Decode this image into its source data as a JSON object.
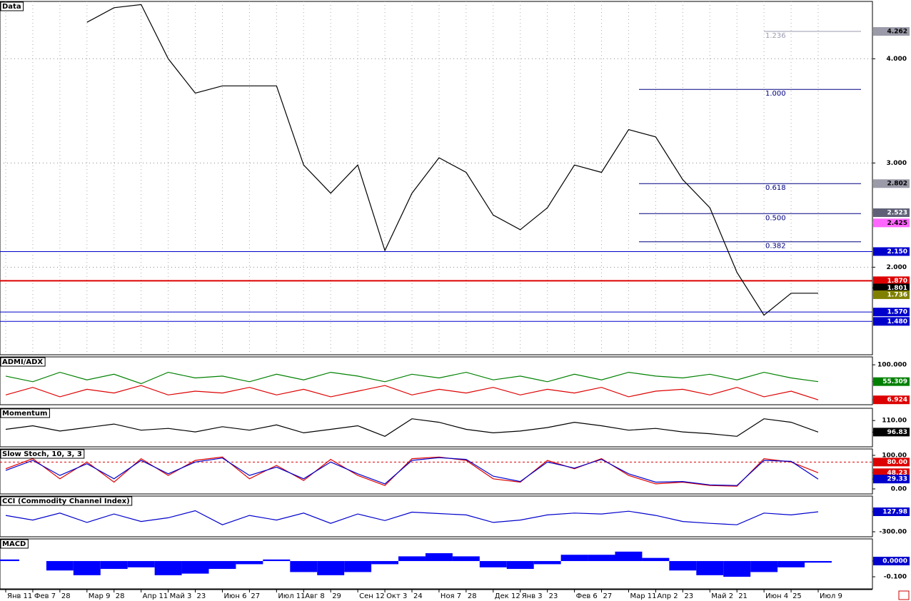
{
  "chart_data": [
    {
      "type": "line",
      "title": "Data",
      "color": "#000000",
      "grid": true,
      "categories": [
        "Янв 11",
        "Фев 7",
        "28",
        "Мар 9",
        "28",
        "Апр 11",
        "Май 3",
        "23",
        "Июн 6",
        "27",
        "Июл 11",
        "Авг 8",
        "29",
        "Сен 12",
        "Окт 3",
        "24",
        "Ноя 7",
        "28",
        "Дек 12",
        "Янв 3",
        "23",
        "Фев 6",
        "27",
        "Мар 11",
        "Апр 2",
        "23",
        "Май 2",
        "21",
        "Июн 4",
        "25",
        "Июл 9"
      ],
      "values": [
        null,
        null,
        null,
        4.35,
        4.49,
        4.52,
        4.0,
        3.67,
        3.74,
        3.74,
        3.74,
        2.98,
        2.71,
        2.98,
        2.16,
        2.71,
        3.05,
        2.91,
        2.5,
        2.36,
        2.57,
        2.98,
        2.91,
        3.32,
        3.25,
        2.84,
        2.57,
        1.95,
        1.54,
        1.75,
        1.75
      ],
      "ylim": [
        1.16,
        4.55
      ],
      "yticks": [
        {
          "value": 4,
          "label": "4.000"
        },
        {
          "value": 3,
          "label": "3.000"
        },
        {
          "value": 2,
          "label": "2.000"
        }
      ],
      "fib_levels": [
        {
          "value": 4.262,
          "label": "1.236"
        },
        {
          "value": 3.706,
          "label": "1.000"
        },
        {
          "value": 2.802,
          "label": "0.618"
        },
        {
          "value": 2.514,
          "label": "0.500"
        },
        {
          "value": 2.244,
          "label": "0.382"
        }
      ],
      "levels": [
        {
          "value": 2.15,
          "label": "2.150",
          "color": "#0000cc"
        },
        {
          "value": 1.87,
          "label": "1.870",
          "color": "#dd0000"
        },
        {
          "value": 1.57,
          "label": "1.570",
          "color": "#0000cc"
        },
        {
          "value": 1.48,
          "label": "1.480",
          "color": "#0000cc"
        }
      ],
      "markers": [
        {
          "value": 4.262,
          "label": "4.262",
          "color": "#9a9aa8"
        },
        {
          "value": 2.802,
          "label": "2.802",
          "color": "#9a9aa8"
        },
        {
          "value": 2.523,
          "label": "2.523",
          "color": "#606078"
        },
        {
          "value": 2.425,
          "label": "2.425",
          "color": "#ff66ff"
        },
        {
          "value": 1.801,
          "label": "1.801",
          "color": "#000000"
        },
        {
          "value": 1.736,
          "label": "1.736",
          "color": "#808000"
        }
      ]
    },
    {
      "type": "line",
      "title": "ADMI/ADX",
      "ylim": [
        -6,
        121
      ],
      "yticks": [
        {
          "value": 100,
          "label": "100.000"
        }
      ],
      "series": [
        {
          "color": "#008000",
          "values": [
            70,
            55,
            80,
            60,
            75,
            50,
            80,
            65,
            70,
            55,
            75,
            60,
            80,
            70,
            55,
            75,
            65,
            80,
            60,
            70,
            55,
            75,
            60,
            80,
            70,
            65,
            75,
            60,
            80,
            65,
            55.3
          ]
        },
        {
          "color": "#dd0000",
          "values": [
            20,
            40,
            15,
            35,
            25,
            45,
            20,
            30,
            25,
            40,
            20,
            35,
            15,
            30,
            45,
            20,
            35,
            25,
            40,
            20,
            35,
            25,
            40,
            15,
            30,
            35,
            20,
            40,
            15,
            30,
            6.9
          ]
        }
      ],
      "markers": [
        {
          "value": 55.309,
          "label": "55.309",
          "color": "#008000"
        },
        {
          "value": 6.924,
          "label": "6.924",
          "color": "#dd0000"
        }
      ]
    },
    {
      "type": "line",
      "title": "Momentum",
      "ylim": [
        80,
        124
      ],
      "yticks": [
        {
          "value": 110,
          "label": "110.00"
        }
      ],
      "series": [
        {
          "color": "#000000",
          "values": [
            100,
            104,
            98,
            102,
            106,
            99,
            101,
            97,
            103,
            99,
            105,
            96,
            100,
            104,
            92,
            112,
            108,
            100,
            96,
            98,
            102,
            108,
            104,
            99,
            101,
            97,
            95,
            92,
            112,
            108,
            96.83
          ]
        }
      ],
      "markers": [
        {
          "value": 96.83,
          "label": "96.83",
          "color": "#000000"
        }
      ]
    },
    {
      "type": "line",
      "title": "Slow Stoch, 10, 3, 3",
      "ylim": [
        -15,
        119
      ],
      "yticks": [
        {
          "value": 100,
          "label": "100.00"
        },
        {
          "value": 0,
          "label": "0.00"
        }
      ],
      "series": [
        {
          "color": "#dd0000",
          "values": [
            60,
            90,
            30,
            80,
            20,
            90,
            40,
            85,
            95,
            30,
            70,
            25,
            88,
            40,
            10,
            90,
            95,
            85,
            30,
            20,
            85,
            60,
            90,
            40,
            15,
            20,
            10,
            8,
            90,
            80,
            48.23
          ]
        },
        {
          "color": "#0000cc",
          "values": [
            55,
            85,
            40,
            75,
            30,
            85,
            45,
            80,
            92,
            40,
            65,
            30,
            80,
            45,
            15,
            85,
            93,
            88,
            38,
            22,
            80,
            62,
            88,
            45,
            20,
            22,
            12,
            10,
            85,
            82,
            29.33
          ]
        }
      ],
      "levels": [
        {
          "value": 80,
          "label": "80.00",
          "color": "#dd0000"
        }
      ],
      "markers": [
        {
          "value": 48.23,
          "label": "48.23",
          "color": "#dd0000"
        },
        {
          "value": 29.33,
          "label": "29.33",
          "color": "#0000cc"
        }
      ]
    },
    {
      "type": "line",
      "title": "CCI (Commodity Channel Index)",
      "ylim": [
        -407,
        464
      ],
      "yticks": [
        {
          "value": -300,
          "label": "-300.00"
        }
      ],
      "series": [
        {
          "color": "#0000cc",
          "values": [
            50,
            -50,
            100,
            -100,
            80,
            -80,
            0,
            150,
            -150,
            50,
            -50,
            100,
            -120,
            80,
            -60,
            120,
            90,
            60,
            -100,
            -50,
            60,
            100,
            80,
            140,
            50,
            -80,
            -120,
            -150,
            100,
            60,
            127.98
          ]
        }
      ],
      "markers": [
        {
          "value": 127.98,
          "label": "127.98",
          "color": "#0000cc"
        }
      ]
    },
    {
      "type": "bar",
      "title": "MACD",
      "ylim": [
        -0.177,
        0.141
      ],
      "color": "#0000ff",
      "yticks": [
        {
          "value": -0.1,
          "label": "-0.100"
        }
      ],
      "values": [
        0.01,
        0,
        -0.06,
        -0.09,
        -0.05,
        -0.04,
        -0.09,
        -0.08,
        -0.05,
        -0.02,
        0.01,
        -0.07,
        -0.09,
        -0.07,
        -0.02,
        0.03,
        0.05,
        0.03,
        -0.04,
        -0.05,
        -0.02,
        0.04,
        0.04,
        0.06,
        0.02,
        -0.06,
        -0.09,
        -0.1,
        -0.07,
        -0.04,
        -0.01
      ],
      "markers": [
        {
          "value": 0,
          "label": "0.0000",
          "color": "#0000cc"
        }
      ]
    }
  ]
}
